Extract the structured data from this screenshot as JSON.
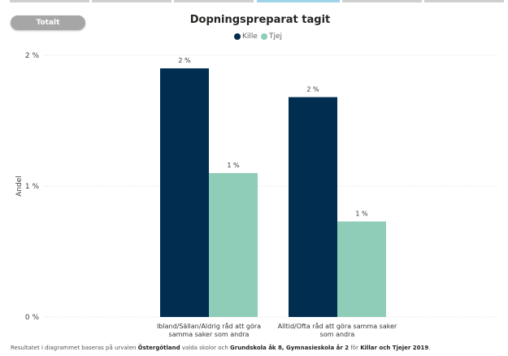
{
  "report": {
    "pill_label": "Totalt",
    "footnote": {
      "p1": "Resultatet i diagrammet baseras på urvalen ",
      "b1": "Östergötland",
      "p2": " valda skolor och ",
      "b2": "Grundskola åk 8, Gymnasieskola år 2",
      "p3": " för ",
      "b3": "Killar och Tjejer 2019",
      "p4": "."
    }
  },
  "colors": {
    "kille": "#002d50",
    "tjej": "#8fcdb8",
    "grid": "#dcdcdc",
    "text": "#404040"
  },
  "chart_data": {
    "type": "bar",
    "title": "Dopningspreparat tagit",
    "xlabel": "",
    "ylabel": "Andel",
    "ylim": [
      0,
      2
    ],
    "yticks": [
      "0 %",
      "1 %",
      "2 %"
    ],
    "grid": true,
    "legend_position": "top-center",
    "categories": [
      [
        "Ibland/Sällan/Aldrig råd att göra",
        "samma saker som andra"
      ],
      [
        "Alltid/Ofta råd att göra samma saker",
        "som andra"
      ]
    ],
    "series": [
      {
        "name": "Kille",
        "values": [
          1.9,
          1.68
        ],
        "labels": [
          "2 %",
          "2 %"
        ]
      },
      {
        "name": "Tjej",
        "values": [
          1.1,
          0.73
        ],
        "labels": [
          "1 %",
          "1 %"
        ]
      }
    ]
  }
}
